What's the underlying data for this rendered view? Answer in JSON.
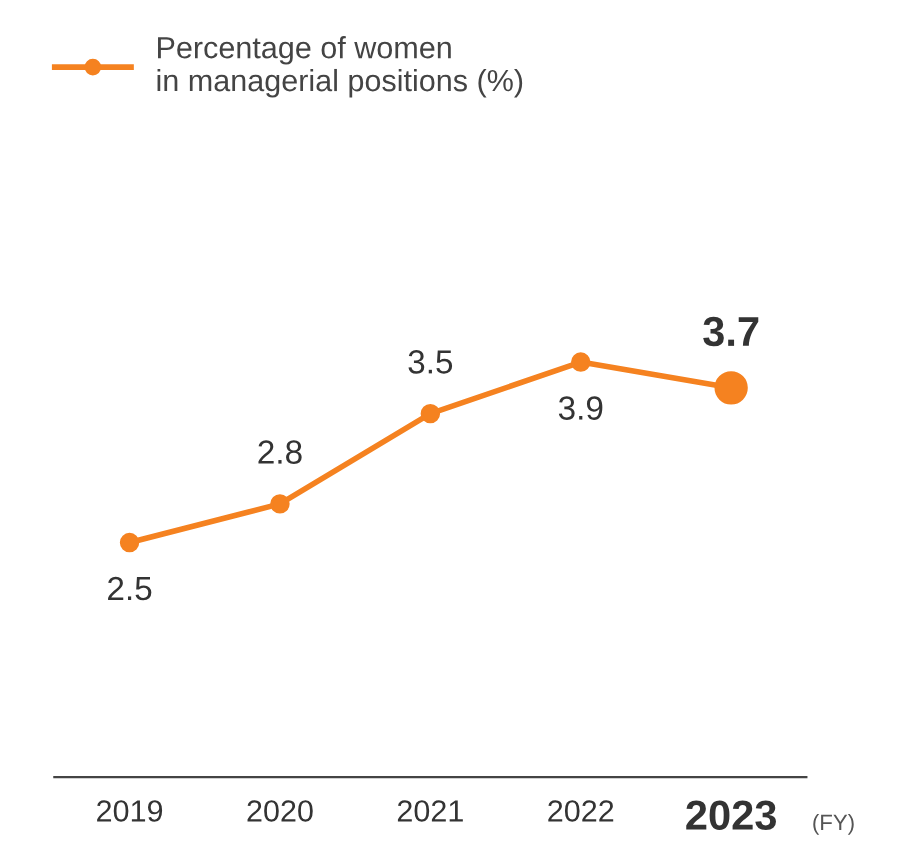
{
  "chart_data": {
    "type": "line",
    "categories": [
      "2019",
      "2020",
      "2021",
      "2022",
      "2023"
    ],
    "series": [
      {
        "name": "Percentage of women\nin managerial positions (%)",
        "color": "#f58220",
        "values": [
          2.5,
          2.8,
          3.5,
          3.9,
          3.7
        ]
      }
    ],
    "xlabel": "(FY)",
    "data_labels": true,
    "marker": "circle",
    "legend": "top left",
    "grid": false,
    "tick_labels": "x"
  }
}
